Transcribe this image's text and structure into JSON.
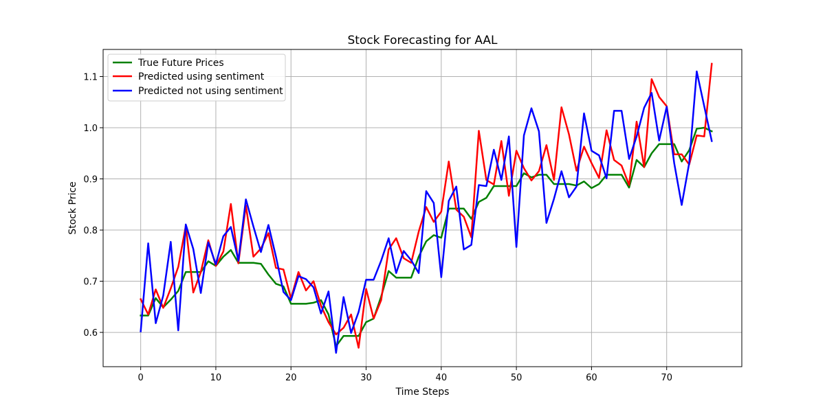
{
  "chart_data": {
    "type": "line",
    "title": "Stock Forecasting for AAL",
    "xlabel": "Time Steps",
    "ylabel": "Stock Price",
    "xlim": [
      -5,
      80
    ],
    "ylim": [
      0.533,
      1.153
    ],
    "xticks": [
      0,
      10,
      20,
      30,
      40,
      50,
      60,
      70
    ],
    "yticks": [
      0.6,
      0.7,
      0.8,
      0.9,
      1.0,
      1.1
    ],
    "ytick_labels": [
      "0.6",
      "0.7",
      "0.8",
      "0.9",
      "1.0",
      "1.1"
    ],
    "grid": true,
    "legend_position": "upper-left",
    "series": [
      {
        "name": "True Future Prices",
        "color": "#008000",
        "values": [
          0.633,
          0.633,
          0.667,
          0.649,
          0.664,
          0.681,
          0.718,
          0.718,
          0.718,
          0.739,
          0.73,
          0.748,
          0.761,
          0.736,
          0.736,
          0.736,
          0.734,
          0.713,
          0.695,
          0.69,
          0.656,
          0.656,
          0.656,
          0.658,
          0.663,
          0.635,
          0.573,
          0.593,
          0.593,
          0.593,
          0.62,
          0.627,
          0.67,
          0.72,
          0.707,
          0.707,
          0.707,
          0.748,
          0.778,
          0.79,
          0.785,
          0.842,
          0.842,
          0.842,
          0.822,
          0.855,
          0.863,
          0.886,
          0.886,
          0.886,
          0.886,
          0.911,
          0.903,
          0.908,
          0.908,
          0.89,
          0.89,
          0.89,
          0.887,
          0.895,
          0.882,
          0.89,
          0.908,
          0.908,
          0.908,
          0.883,
          0.937,
          0.923,
          0.95,
          0.968,
          0.968,
          0.968,
          0.934,
          0.956,
          0.998,
          1.0,
          0.993
        ]
      },
      {
        "name": "Predicted using sentiment",
        "color": "#ff0000",
        "values": [
          0.665,
          0.635,
          0.684,
          0.648,
          0.686,
          0.728,
          0.808,
          0.678,
          0.718,
          0.78,
          0.73,
          0.758,
          0.851,
          0.735,
          0.848,
          0.748,
          0.764,
          0.794,
          0.726,
          0.723,
          0.666,
          0.718,
          0.682,
          0.7,
          0.652,
          0.62,
          0.596,
          0.609,
          0.635,
          0.57,
          0.685,
          0.627,
          0.663,
          0.762,
          0.784,
          0.745,
          0.736,
          0.797,
          0.845,
          0.816,
          0.836,
          0.934,
          0.84,
          0.826,
          0.786,
          0.994,
          0.898,
          0.889,
          0.974,
          0.867,
          0.955,
          0.921,
          0.897,
          0.915,
          0.966,
          0.898,
          1.04,
          0.987,
          0.916,
          0.963,
          0.931,
          0.902,
          0.995,
          0.937,
          0.926,
          0.888,
          1.012,
          0.923,
          1.095,
          1.06,
          1.042,
          0.948,
          0.948,
          0.928,
          0.985,
          0.983,
          1.125
        ]
      },
      {
        "name": "Predicted not using sentiment",
        "color": "#0000ff",
        "values": [
          0.602,
          0.774,
          0.618,
          0.672,
          0.777,
          0.604,
          0.811,
          0.763,
          0.677,
          0.776,
          0.733,
          0.788,
          0.806,
          0.74,
          0.86,
          0.807,
          0.757,
          0.81,
          0.748,
          0.679,
          0.663,
          0.71,
          0.704,
          0.688,
          0.637,
          0.68,
          0.56,
          0.669,
          0.599,
          0.64,
          0.703,
          0.703,
          0.74,
          0.784,
          0.716,
          0.759,
          0.741,
          0.716,
          0.876,
          0.853,
          0.708,
          0.857,
          0.885,
          0.762,
          0.771,
          0.888,
          0.886,
          0.957,
          0.898,
          0.983,
          0.767,
          0.985,
          1.038,
          0.993,
          0.814,
          0.861,
          0.915,
          0.864,
          0.885,
          1.028,
          0.955,
          0.946,
          0.901,
          1.033,
          1.033,
          0.939,
          0.983,
          1.039,
          1.068,
          0.975,
          1.041,
          0.931,
          0.849,
          0.931,
          1.11,
          1.042,
          0.974
        ]
      }
    ]
  }
}
